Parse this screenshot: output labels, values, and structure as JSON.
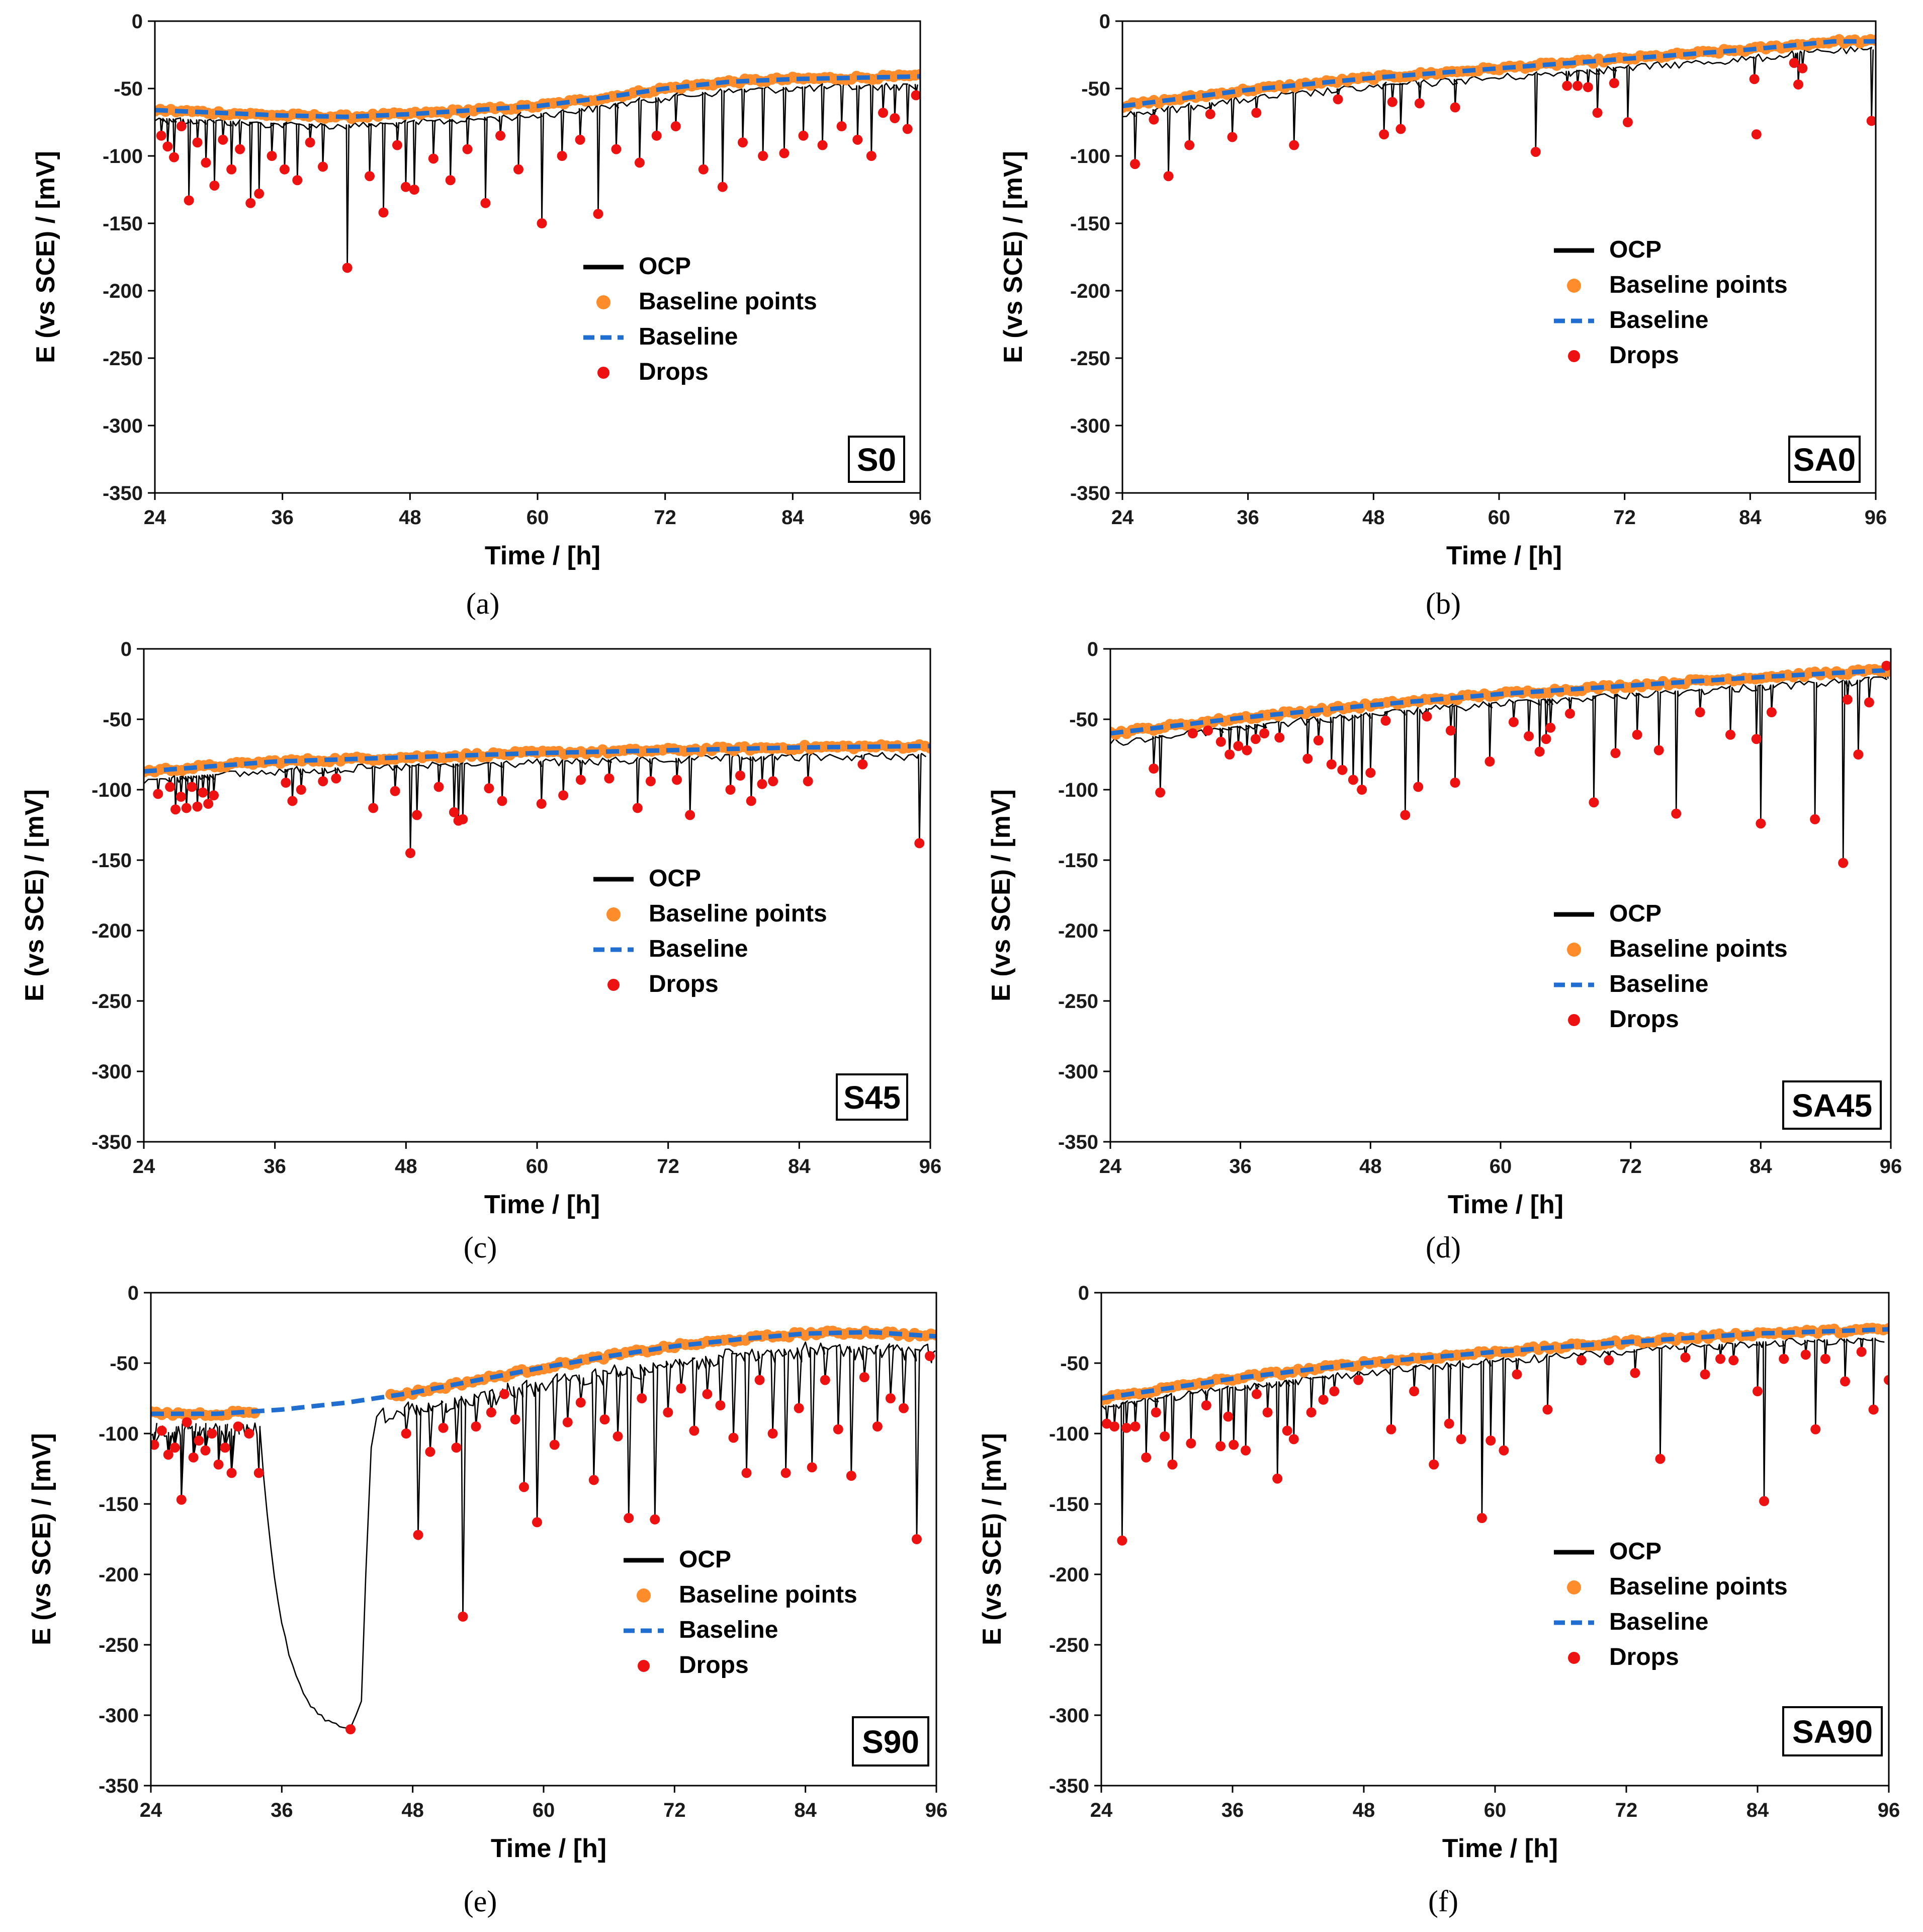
{
  "figure": {
    "colors": {
      "ocp": "#000000",
      "baseline_points": "#ff8c2a",
      "baseline": "#1f6ed0",
      "drops": "#ee1111",
      "axis": "#000000"
    }
  },
  "chart_data": [
    {
      "id": "a",
      "type": "line",
      "caption": "(a)",
      "sample": "S0",
      "xlabel": "Time / [h]",
      "ylabel": "E (vs SCE) / [mV]",
      "xlim": [
        24,
        96
      ],
      "ylim": [
        -350,
        0
      ],
      "xticks": [
        "24",
        "36",
        "48",
        "60",
        "72",
        "84",
        "96"
      ],
      "yticks": [
        "0",
        "-50",
        "-100",
        "-150",
        "-200",
        "-250",
        "-300",
        "-350"
      ],
      "legend": {
        "placement": "center-right",
        "entries": [
          "OCP",
          "Baseline points",
          "Baseline",
          "Drops"
        ]
      },
      "baseline": {
        "x": [
          24,
          36,
          42,
          48,
          60,
          66,
          72,
          78,
          84,
          90,
          96
        ],
        "y": [
          -66,
          -70,
          -71,
          -69,
          -63,
          -57,
          -50,
          -45,
          -43,
          -42,
          -41
        ]
      },
      "baseline_start_h": 24,
      "drops": {
        "x": [
          24.6,
          25.2,
          25.8,
          26.5,
          27.2,
          28.0,
          28.8,
          29.6,
          30.4,
          31.2,
          32.0,
          33.0,
          33.8,
          35.0,
          36.2,
          37.4,
          38.6,
          39.8,
          42.1,
          44.2,
          45.5,
          46.8,
          47.6,
          48.4,
          50.2,
          51.8,
          53.4,
          55.1,
          56.5,
          58.2,
          60.4,
          62.3,
          64.0,
          65.7,
          67.4,
          69.6,
          71.2,
          73.0,
          75.6,
          77.4,
          79.3,
          81.2,
          83.2,
          85.0,
          86.8,
          88.6,
          90.1,
          91.4,
          92.5,
          93.6,
          94.8,
          95.6
        ],
        "y": [
          -85,
          -93,
          -101,
          -78,
          -133,
          -90,
          -105,
          -122,
          -88,
          -110,
          -95,
          -135,
          -128,
          -100,
          -110,
          -118,
          -90,
          -108,
          -183,
          -115,
          -142,
          -92,
          -123,
          -125,
          -102,
          -118,
          -95,
          -135,
          -85,
          -110,
          -150,
          -100,
          -88,
          -143,
          -95,
          -105,
          -85,
          -78,
          -110,
          -123,
          -90,
          -100,
          -98,
          -85,
          -92,
          -78,
          -88,
          -100,
          -68,
          -72,
          -80,
          -55
        ]
      }
    },
    {
      "id": "b",
      "type": "line",
      "caption": "(b)",
      "sample": "SA0",
      "xlabel": "Time / [h]",
      "ylabel": "E (vs SCE) / [mV]",
      "xlim": [
        24,
        96
      ],
      "ylim": [
        -350,
        0
      ],
      "xticks": [
        "24",
        "36",
        "48",
        "60",
        "72",
        "84",
        "96"
      ],
      "yticks": [
        "0",
        "-50",
        "-100",
        "-150",
        "-200",
        "-250",
        "-300",
        "-350"
      ],
      "legend": {
        "placement": "top-right",
        "entries": [
          "OCP",
          "Baseline points",
          "Baseline",
          "Drops"
        ]
      },
      "baseline": {
        "x": [
          24,
          36,
          48,
          60,
          72,
          84,
          92,
          96
        ],
        "y": [
          -63,
          -51,
          -42,
          -35,
          -28,
          -21,
          -15,
          -15
        ]
      },
      "baseline_start_h": 24,
      "drops": {
        "x": [
          25.2,
          27.0,
          28.4,
          30.4,
          32.4,
          34.5,
          36.8,
          40.4,
          44.6,
          49.0,
          49.8,
          50.6,
          52.4,
          55.8,
          63.5,
          66.5,
          67.5,
          68.5,
          69.4,
          71.0,
          72.3,
          84.4,
          84.6,
          88.2,
          88.6,
          89.0,
          95.6
        ],
        "y": [
          -106,
          -73,
          -115,
          -92,
          -69,
          -86,
          -68,
          -92,
          -58,
          -84,
          -60,
          -80,
          -61,
          -64,
          -97,
          -48,
          -48,
          -49,
          -68,
          -46,
          -75,
          -43,
          -84,
          -31,
          -47,
          -35,
          -74
        ]
      }
    },
    {
      "id": "c",
      "type": "line",
      "caption": "(c)",
      "sample": "S45",
      "xlabel": "Time / [h]",
      "ylabel": "E (vs SCE) / [mV]",
      "xlim": [
        24,
        96
      ],
      "ylim": [
        -350,
        0
      ],
      "xticks": [
        "24",
        "36",
        "48",
        "60",
        "72",
        "84",
        "96"
      ],
      "yticks": [
        "0",
        "-50",
        "-100",
        "-150",
        "-200",
        "-250",
        "-300",
        "-350"
      ],
      "legend": {
        "placement": "center-right",
        "entries": [
          "OCP",
          "Baseline points",
          "Baseline",
          "Drops"
        ]
      },
      "baseline": {
        "x": [
          24,
          36,
          48,
          60,
          72,
          84,
          96
        ],
        "y": [
          -87,
          -80,
          -77,
          -74,
          -72,
          -70,
          -69
        ]
      },
      "baseline_start_h": 24,
      "drops": {
        "x": [
          25.3,
          26.4,
          26.9,
          27.4,
          27.9,
          28.4,
          28.9,
          29.4,
          29.9,
          30.4,
          37.0,
          37.6,
          38.4,
          40.4,
          41.6,
          45.0,
          47.0,
          48.4,
          49.0,
          51.0,
          52.4,
          52.8,
          53.2,
          55.6,
          56.8,
          60.4,
          62.4,
          64.0,
          66.6,
          69.2,
          70.4,
          72.8,
          74.0,
          77.7,
          78.6,
          79.6,
          80.6,
          81.6,
          84.8,
          89.8,
          95.0
        ],
        "y": [
          -103,
          -98,
          -114,
          -105,
          -113,
          -98,
          -112,
          -102,
          -110,
          -104,
          -95,
          -108,
          -100,
          -94,
          -92,
          -113,
          -101,
          -145,
          -118,
          -98,
          -116,
          -122,
          -121,
          -99,
          -108,
          -110,
          -104,
          -93,
          -92,
          -113,
          -94,
          -93,
          -118,
          -100,
          -90,
          -108,
          -96,
          -94,
          -94,
          -82,
          -138
        ]
      }
    },
    {
      "id": "d",
      "type": "line",
      "caption": "(d)",
      "sample": "SA45",
      "xlabel": "Time / [h]",
      "ylabel": "E (vs SCE) / [mV]",
      "xlim": [
        24,
        96
      ],
      "ylim": [
        -350,
        0
      ],
      "xticks": [
        "24",
        "36",
        "48",
        "60",
        "72",
        "84",
        "96"
      ],
      "yticks": [
        "0",
        "-50",
        "-100",
        "-150",
        "-200",
        "-250",
        "-300",
        "-350"
      ],
      "legend": {
        "placement": "center-right",
        "entries": [
          "OCP",
          "Baseline points",
          "Baseline",
          "Drops"
        ]
      },
      "baseline": {
        "x": [
          24,
          36,
          48,
          60,
          72,
          84,
          96
        ],
        "y": [
          -60,
          -49,
          -40,
          -32,
          -26,
          -20,
          -15
        ]
      },
      "baseline_start_h": 24,
      "drops": {
        "x": [
          28.0,
          28.6,
          31.6,
          33.0,
          34.2,
          35.0,
          35.8,
          36.6,
          37.4,
          38.2,
          39.6,
          42.2,
          43.2,
          44.4,
          45.4,
          46.4,
          47.2,
          48.0,
          49.4,
          51.2,
          52.4,
          53.2,
          55.4,
          55.8,
          59.0,
          61.2,
          62.6,
          63.6,
          64.2,
          64.6,
          66.4,
          68.6,
          70.6,
          72.6,
          74.6,
          76.2,
          78.4,
          81.2,
          83.6,
          84.0,
          85.0,
          89.0,
          91.6,
          92.0,
          93.0,
          94.0,
          95.6
        ],
        "y": [
          -85,
          -102,
          -60,
          -58,
          -66,
          -75,
          -69,
          -72,
          -64,
          -60,
          -63,
          -78,
          -65,
          -82,
          -86,
          -93,
          -100,
          -88,
          -51,
          -118,
          -98,
          -48,
          -58,
          -95,
          -80,
          -52,
          -62,
          -73,
          -64,
          -56,
          -46,
          -109,
          -74,
          -61,
          -72,
          -117,
          -45,
          -61,
          -64,
          -124,
          -45,
          -121,
          -152,
          -36,
          -75,
          -38,
          -12
        ]
      }
    },
    {
      "id": "e",
      "type": "line",
      "caption": "(e)",
      "sample": "S90",
      "xlabel": "Time / [h]",
      "ylabel": "E (vs SCE) / [mV]",
      "xlim": [
        24,
        96
      ],
      "ylim": [
        -350,
        0
      ],
      "xticks": [
        "24",
        "36",
        "48",
        "60",
        "72",
        "84",
        "96"
      ],
      "yticks": [
        "0",
        "-50",
        "-100",
        "-150",
        "-200",
        "-250",
        "-300",
        "-350"
      ],
      "legend": {
        "placement": "center-right",
        "entries": [
          "OCP",
          "Baseline points",
          "Baseline",
          "Drops"
        ]
      },
      "baseline": {
        "x": [
          24,
          30,
          36,
          42,
          48,
          54,
          60,
          66,
          72,
          78,
          84,
          90,
          96
        ],
        "y": [
          -86,
          -86,
          -83,
          -78,
          -71,
          -62,
          -53,
          -45,
          -38,
          -33,
          -29,
          -28,
          -31
        ]
      },
      "baseline_start_h": 46,
      "drops": {
        "x": [
          24.3,
          25.0,
          25.6,
          26.2,
          26.8,
          27.3,
          27.9,
          28.4,
          29.0,
          29.6,
          30.2,
          30.8,
          31.4,
          32.0,
          33.0,
          33.9,
          42.3,
          47.4,
          48.5,
          49.6,
          50.8,
          52.0,
          52.6,
          53.8,
          55.2,
          56.4,
          57.4,
          58.2,
          59.4,
          61.0,
          62.2,
          63.4,
          64.6,
          65.6,
          66.8,
          67.8,
          69.0,
          70.2,
          71.4,
          72.6,
          73.8,
          75.0,
          76.2,
          77.4,
          78.6,
          79.8,
          81.0,
          82.2,
          83.4,
          84.6,
          85.8,
          87.0,
          88.2,
          89.4,
          90.6,
          91.8,
          93.0,
          94.2,
          95.4
        ],
        "y": [
          -108,
          -98,
          -115,
          -110,
          -147,
          -92,
          -117,
          -105,
          -112,
          -100,
          -122,
          -110,
          -128,
          -95,
          -100,
          -128,
          -310,
          -100,
          -172,
          -113,
          -96,
          -110,
          -230,
          -95,
          -85,
          -72,
          -90,
          -138,
          -163,
          -108,
          -92,
          -78,
          -133,
          -90,
          -102,
          -160,
          -75,
          -161,
          -85,
          -68,
          -98,
          -72,
          -80,
          -103,
          -128,
          -62,
          -100,
          -128,
          -82,
          -124,
          -62,
          -97,
          -130,
          -60,
          -95,
          -75,
          -82,
          -175,
          -45
        ]
      }
    },
    {
      "id": "f",
      "type": "line",
      "caption": "(f)",
      "sample": "SA90",
      "xlabel": "Time / [h]",
      "ylabel": "E (vs SCE) / [mV]",
      "xlim": [
        24,
        96
      ],
      "ylim": [
        -350,
        0
      ],
      "xticks": [
        "24",
        "36",
        "48",
        "60",
        "72",
        "84",
        "96"
      ],
      "yticks": [
        "0",
        "-50",
        "-100",
        "-150",
        "-200",
        "-250",
        "-300",
        "-350"
      ],
      "legend": {
        "placement": "center-right",
        "entries": [
          "OCP",
          "Baseline points",
          "Baseline",
          "Drops"
        ]
      },
      "baseline": {
        "x": [
          24,
          36,
          48,
          60,
          72,
          84,
          96
        ],
        "y": [
          -75,
          -61,
          -50,
          -42,
          -35,
          -29,
          -26
        ]
      },
      "baseline_start_h": 24,
      "drops": {
        "x": [
          24.5,
          25.2,
          25.9,
          26.3,
          27.1,
          28.1,
          29.0,
          29.8,
          30.5,
          32.2,
          33.6,
          34.9,
          35.6,
          36.1,
          37.2,
          38.2,
          39.2,
          40.1,
          41.0,
          41.6,
          43.2,
          44.3,
          45.3,
          47.5,
          50.5,
          52.6,
          54.4,
          55.8,
          56.9,
          58.8,
          59.6,
          60.8,
          62.0,
          64.8,
          67.9,
          70.4,
          72.8,
          75.1,
          77.4,
          79.2,
          80.6,
          81.8,
          84.0,
          84.6,
          86.4,
          88.4,
          89.3,
          90.2,
          92.0,
          93.5,
          94.6,
          96.0
        ],
        "y": [
          -93,
          -95,
          -176,
          -96,
          -95,
          -117,
          -85,
          -102,
          -122,
          -107,
          -80,
          -109,
          -88,
          -108,
          -112,
          -72,
          -85,
          -132,
          -98,
          -104,
          -85,
          -76,
          -70,
          -62,
          -97,
          -70,
          -122,
          -93,
          -104,
          -160,
          -105,
          -112,
          -58,
          -83,
          -48,
          -48,
          -57,
          -118,
          -46,
          -58,
          -47,
          -48,
          -70,
          -148,
          -47,
          -44,
          -97,
          -47,
          -63,
          -42,
          -83,
          -62
        ]
      }
    }
  ]
}
